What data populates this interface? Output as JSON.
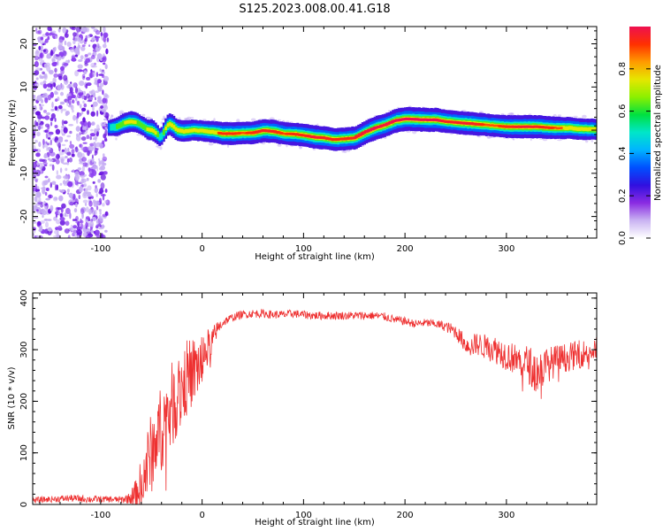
{
  "figure_title": "S125.2023.008.00.41.G18",
  "chart_data": [
    {
      "type": "heatmap",
      "title": "",
      "xlabel": "Height of straight line (km)",
      "ylabel": "Frequency (Hz)",
      "xlim": [
        -167,
        389
      ],
      "ylim": [
        -25,
        24
      ],
      "xticks": [
        -100,
        0,
        100,
        200,
        300
      ],
      "yticks": [
        -20,
        -10,
        0,
        10,
        20
      ],
      "colorbar": {
        "label": "Normalized spectral amplitude",
        "range": [
          0,
          1
        ],
        "ticks": [
          0.0,
          0.2,
          0.4,
          0.6,
          0.8
        ],
        "colors": [
          "#ffffff",
          "#c9b3f2",
          "#8a2be2",
          "#3010e0",
          "#0050ff",
          "#00b4ff",
          "#00e6c8",
          "#00e040",
          "#8cf000",
          "#e6e600",
          "#ff9a00",
          "#ff3000",
          "#ee1050"
        ]
      },
      "noise_region": {
        "x": [
          -167,
          -93
        ],
        "y": [
          -25,
          24
        ],
        "amplitude": 0.25
      },
      "ridge": {
        "x": [
          -93,
          -85,
          -78,
          -72,
          -66,
          -60,
          -55,
          -50,
          -46,
          -42,
          -38,
          -34,
          -30,
          -26,
          -20,
          -10,
          0,
          10,
          20,
          30,
          40,
          50,
          60,
          70,
          80,
          90,
          100,
          110,
          120,
          130,
          140,
          150,
          160,
          170,
          180,
          190,
          200,
          210,
          220,
          230,
          240,
          250,
          260,
          270,
          280,
          290,
          300,
          310,
          320,
          330,
          340,
          350,
          360,
          370,
          380,
          389
        ],
        "freq": [
          0.5,
          0.8,
          1.6,
          2.0,
          1.8,
          1.0,
          0.2,
          0.0,
          -0.8,
          -1.8,
          0.0,
          1.5,
          1.0,
          0.0,
          -0.3,
          0.0,
          -0.2,
          -0.4,
          -0.8,
          -0.8,
          -0.7,
          -0.6,
          -0.1,
          -0.3,
          -0.8,
          -0.9,
          -1.2,
          -1.6,
          -1.8,
          -2.2,
          -2.0,
          -1.8,
          -0.5,
          0.5,
          1.2,
          2.2,
          2.6,
          2.5,
          2.4,
          2.4,
          2.0,
          1.8,
          1.6,
          1.4,
          1.2,
          1.0,
          0.8,
          0.8,
          0.8,
          0.8,
          0.6,
          0.5,
          0.5,
          0.3,
          0.2,
          0.2
        ],
        "amplitude": [
          0.4,
          0.6,
          0.7,
          0.75,
          0.7,
          0.6,
          0.7,
          0.8,
          0.7,
          0.5,
          0.7,
          0.8,
          0.85,
          0.8,
          0.8,
          0.75,
          0.75,
          0.8,
          0.88,
          0.88,
          0.85,
          0.88,
          0.9,
          0.9,
          0.85,
          0.88,
          0.88,
          0.92,
          0.9,
          0.88,
          0.88,
          0.9,
          0.92,
          0.95,
          0.92,
          0.95,
          0.96,
          0.96,
          0.96,
          0.95,
          0.9,
          0.9,
          0.92,
          0.9,
          0.85,
          0.85,
          0.88,
          0.9,
          0.92,
          0.9,
          0.88,
          0.85,
          0.82,
          0.8,
          0.78,
          0.75
        ]
      }
    },
    {
      "type": "line",
      "title": "",
      "xlabel": "Height of straight line (km)",
      "ylabel": "SNR (10 * v/v)",
      "xlim": [
        -167,
        389
      ],
      "ylim": [
        0,
        410
      ],
      "xticks": [
        -100,
        0,
        100,
        200,
        300
      ],
      "yticks": [
        0,
        100,
        200,
        300,
        400
      ],
      "series": [
        {
          "color": "#ee3030",
          "x": [
            -167,
            -150,
            -130,
            -110,
            -90,
            -80,
            -72,
            -65,
            -60,
            -55,
            -50,
            -45,
            -40,
            -35,
            -30,
            -25,
            -20,
            -15,
            -10,
            -5,
            0,
            5,
            10,
            15,
            20,
            25,
            30,
            35,
            40,
            50,
            60,
            70,
            80,
            90,
            100,
            110,
            120,
            130,
            140,
            150,
            160,
            170,
            180,
            190,
            200,
            210,
            220,
            230,
            240,
            250,
            260,
            265,
            270,
            280,
            290,
            300,
            310,
            320,
            330,
            340,
            350,
            360,
            370,
            380,
            389
          ],
          "y": [
            8,
            10,
            12,
            10,
            10,
            9,
            12,
            20,
            40,
            70,
            100,
            125,
            150,
            170,
            190,
            210,
            230,
            245,
            255,
            265,
            280,
            300,
            320,
            340,
            352,
            358,
            362,
            366,
            368,
            370,
            370,
            368,
            368,
            370,
            368,
            366,
            366,
            366,
            366,
            366,
            366,
            366,
            364,
            358,
            355,
            350,
            352,
            350,
            345,
            335,
            310,
            305,
            312,
            305,
            300,
            290,
            280,
            275,
            255,
            270,
            280,
            285,
            290,
            295,
            300
          ],
          "spread": [
            6,
            6,
            7,
            7,
            6,
            7,
            10,
            30,
            50,
            70,
            80,
            80,
            85,
            85,
            85,
            80,
            80,
            75,
            70,
            65,
            55,
            40,
            25,
            15,
            10,
            8,
            8,
            8,
            8,
            8,
            8,
            8,
            8,
            8,
            8,
            8,
            8,
            8,
            8,
            8,
            8,
            8,
            8,
            8,
            8,
            8,
            8,
            8,
            10,
            14,
            18,
            20,
            22,
            25,
            28,
            30,
            30,
            35,
            45,
            35,
            30,
            28,
            28,
            25,
            25
          ]
        }
      ]
    }
  ]
}
